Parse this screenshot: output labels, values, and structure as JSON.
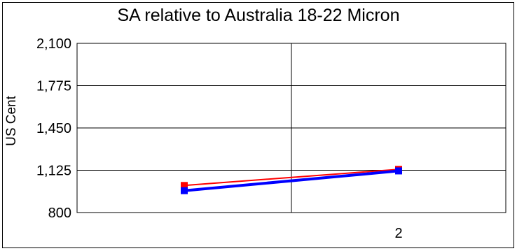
{
  "chart_data": {
    "type": "line",
    "title": "SA relative to Australia 18-22 Micron",
    "ylabel": "US Cent",
    "xlabel": "",
    "ylim": [
      800,
      2100
    ],
    "yticks": [
      "2,100",
      "1,775",
      "1,450",
      "1,125",
      "800"
    ],
    "ytick_values": [
      2100,
      1775,
      1450,
      1125,
      800
    ],
    "x_categories": [
      "",
      "2"
    ],
    "grid": true,
    "legend": "none",
    "series": [
      {
        "color": "#ff0000",
        "values": [
          1008,
          1132
        ]
      },
      {
        "color": "#0000ff",
        "values": [
          968,
          1120
        ]
      }
    ]
  }
}
